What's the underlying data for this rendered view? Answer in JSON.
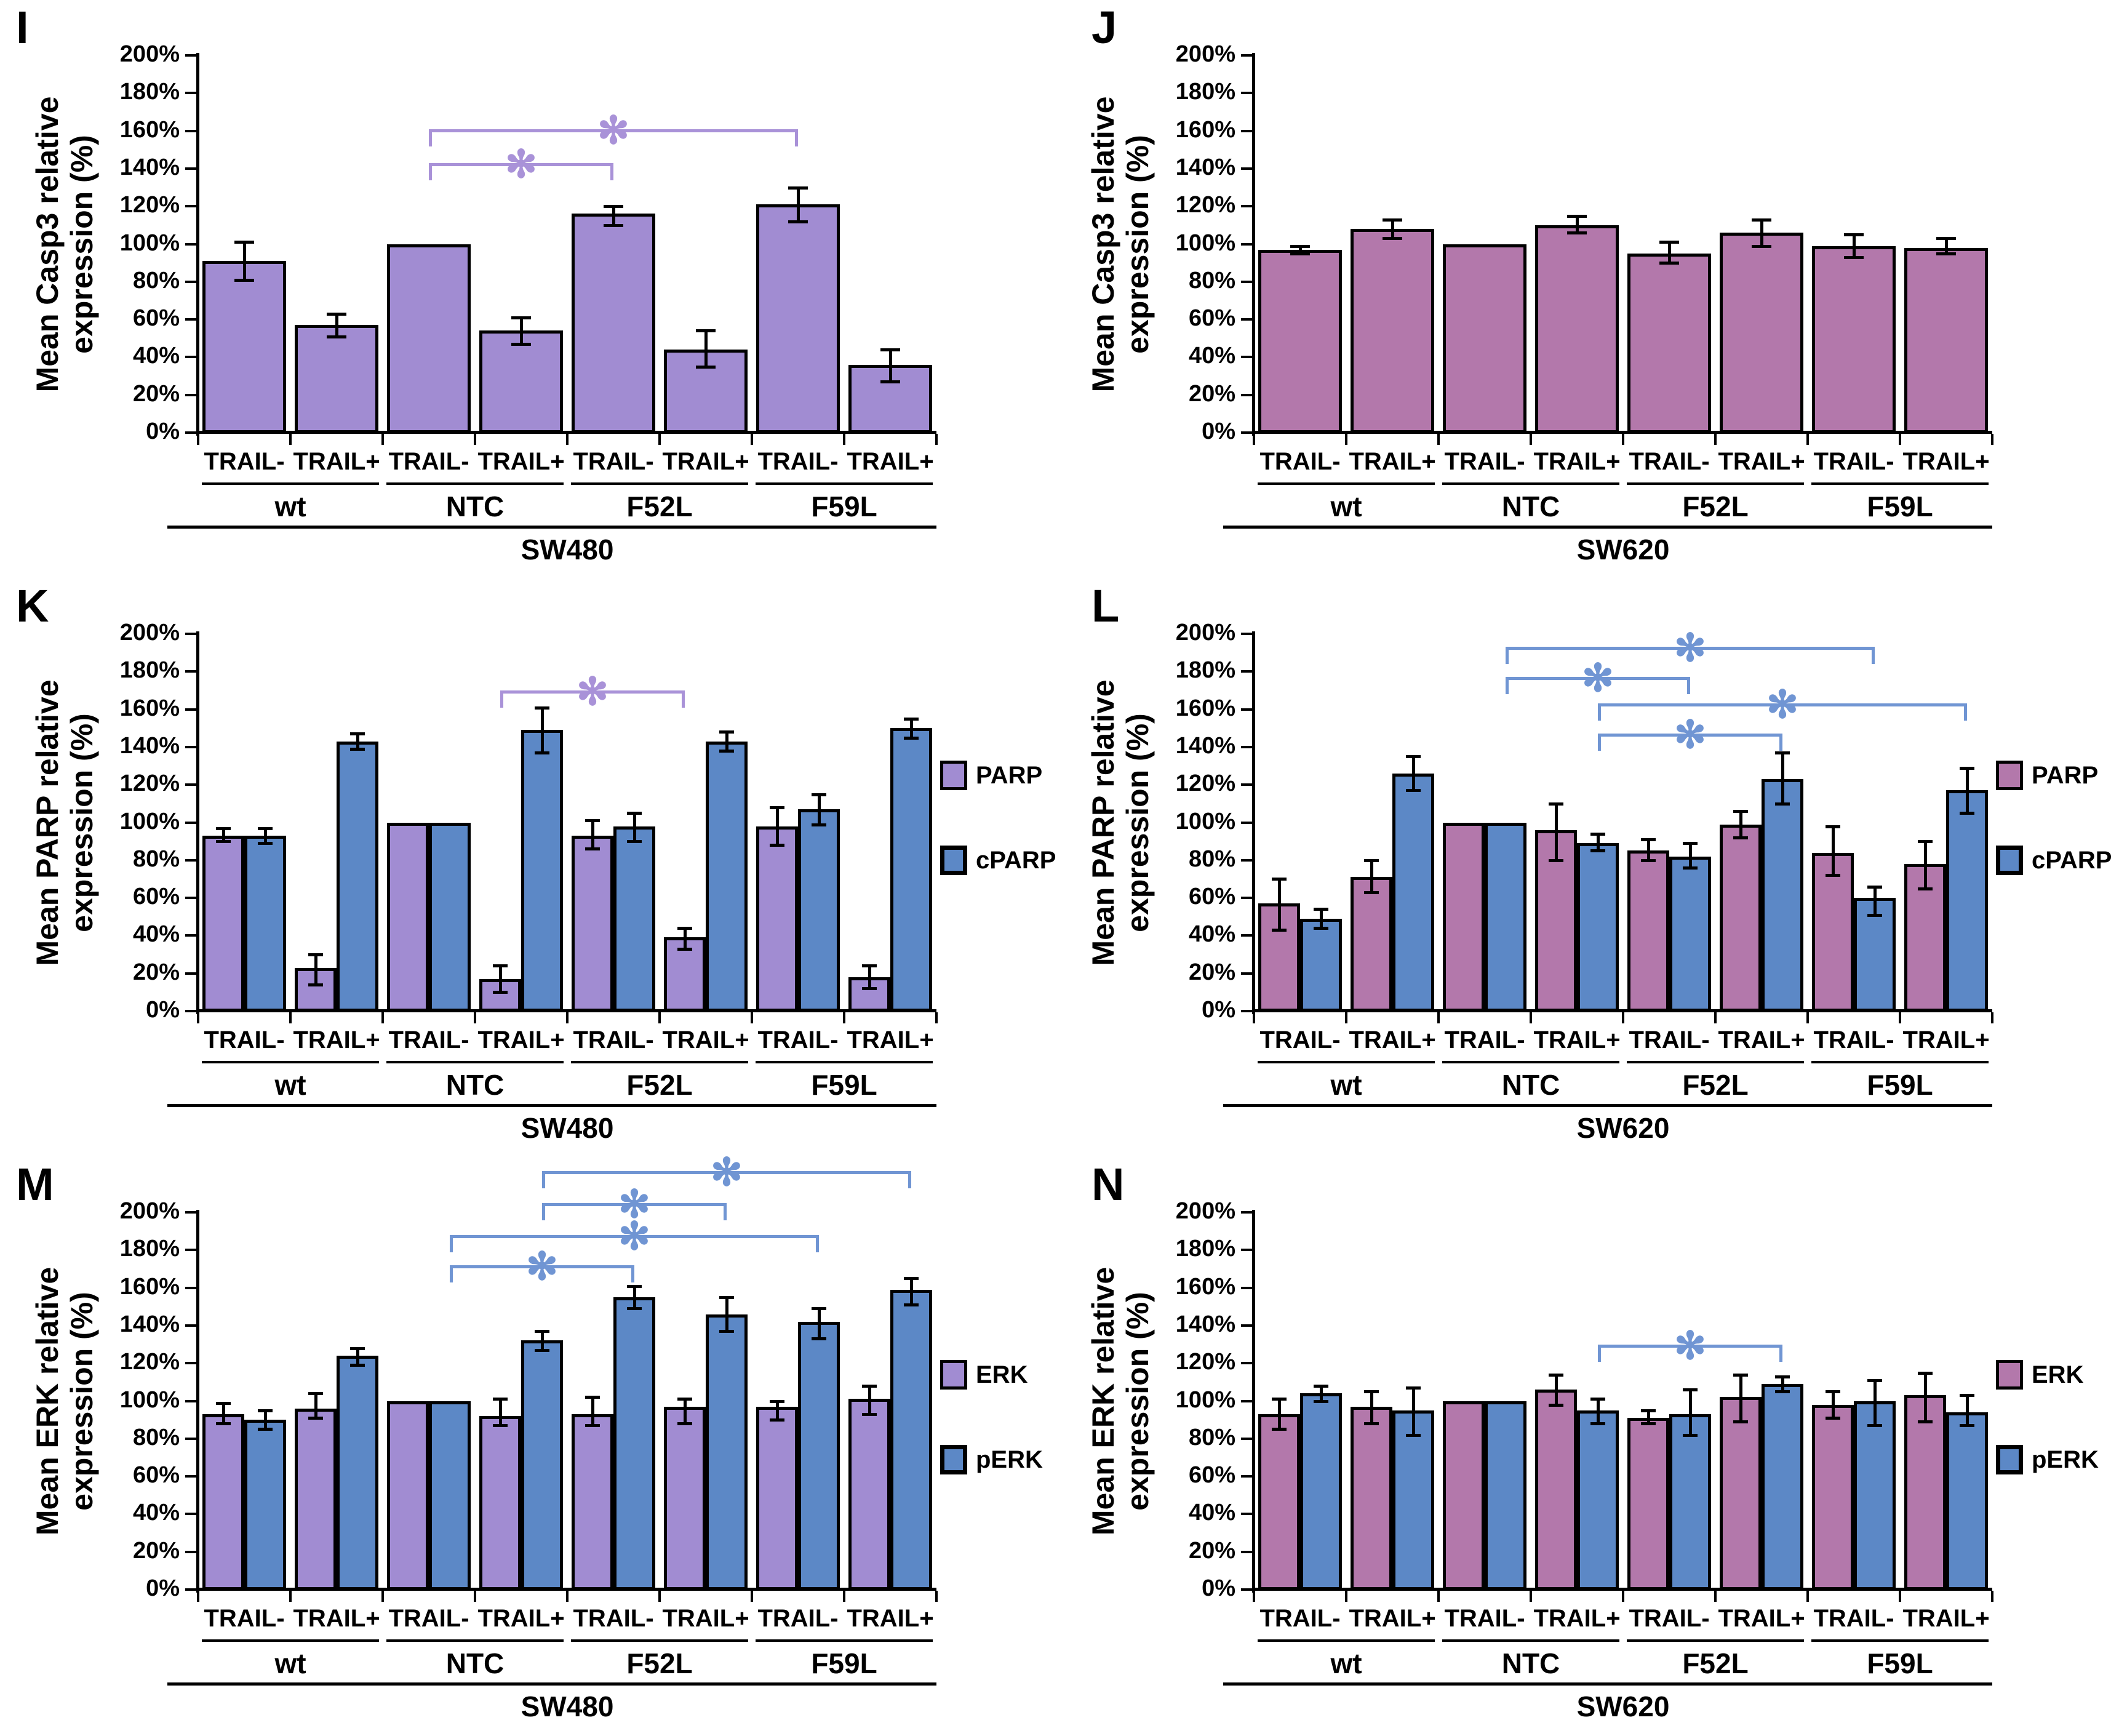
{
  "figure_title": "",
  "colors": {
    "purple": "#a18cd2",
    "pink": "#b378ab",
    "blue": "#5c88c6",
    "bracket_purple": "#a992d8",
    "bracket_blue": "#7095d3",
    "bar_border": "#000000",
    "background": "#ffffff"
  },
  "yticks": [
    "0%",
    "20%",
    "40%",
    "60%",
    "80%",
    "100%",
    "120%",
    "140%",
    "160%",
    "180%",
    "200%"
  ],
  "chart_data": [
    {
      "id": "I",
      "type": "bar",
      "letter": "I",
      "ylabel": "Mean Casp3 relative expression (%)",
      "cell_line": "SW480",
      "groups": [
        "wt",
        "NTC",
        "F52L",
        "F59L"
      ],
      "conditions": [
        "TRAIL-",
        "TRAIL+"
      ],
      "ylim": [
        0,
        200
      ],
      "ytick_step": 20,
      "grid": false,
      "series": [
        {
          "name": "Casp3",
          "color": "purple",
          "values": [
            91,
            57,
            100,
            54,
            116,
            44,
            121,
            36
          ],
          "err_lo": [
            81,
            51,
            null,
            47,
            110,
            35,
            112,
            27
          ],
          "err_hi": [
            101,
            63,
            null,
            61,
            120,
            54,
            130,
            44
          ]
        }
      ],
      "legend": [],
      "bracket_color": "bracket_purple",
      "brackets": [
        {
          "from": 2,
          "to": 4,
          "level": 143,
          "label": "*"
        },
        {
          "from": 2,
          "to": 6,
          "level": 161,
          "label": "*"
        }
      ]
    },
    {
      "id": "J",
      "type": "bar",
      "letter": "J",
      "ylabel": "Mean Casp3 relative expression (%)",
      "cell_line": "SW620",
      "groups": [
        "wt",
        "NTC",
        "F52L",
        "F59L"
      ],
      "conditions": [
        "TRAIL-",
        "TRAIL+"
      ],
      "ylim": [
        0,
        200
      ],
      "ytick_step": 20,
      "grid": false,
      "series": [
        {
          "name": "Casp3",
          "color": "pink",
          "values": [
            97,
            108,
            100,
            110,
            95,
            106,
            99,
            98
          ],
          "err_lo": [
            95,
            103,
            null,
            106,
            90,
            99,
            93,
            95
          ],
          "err_hi": [
            99,
            113,
            null,
            115,
            101,
            113,
            105,
            103
          ]
        }
      ],
      "legend": [],
      "bracket_color": "bracket_pink",
      "brackets": []
    },
    {
      "id": "K",
      "type": "bar",
      "letter": "K",
      "ylabel": "Mean PARP relative expression (%)",
      "cell_line": "SW480",
      "groups": [
        "wt",
        "NTC",
        "F52L",
        "F59L"
      ],
      "conditions": [
        "TRAIL-",
        "TRAIL+"
      ],
      "ylim": [
        0,
        200
      ],
      "ytick_step": 20,
      "grid": false,
      "series": [
        {
          "name": "PARP",
          "color": "purple",
          "values": [
            93,
            23,
            100,
            17,
            93,
            39,
            98,
            18
          ],
          "err_lo": [
            90,
            14,
            null,
            10,
            86,
            33,
            88,
            12
          ],
          "err_hi": [
            97,
            30,
            null,
            24,
            101,
            44,
            108,
            24
          ]
        },
        {
          "name": "cPARP",
          "color": "blue",
          "values": [
            93,
            143,
            100,
            149,
            98,
            143,
            107,
            150
          ],
          "err_lo": [
            89,
            139,
            null,
            137,
            90,
            138,
            99,
            145
          ],
          "err_hi": [
            97,
            147,
            null,
            161,
            105,
            148,
            115,
            155
          ]
        }
      ],
      "legend": [
        {
          "label": "PARP",
          "color": "purple",
          "level": 125
        },
        {
          "label": "cPARP",
          "color": "blue",
          "level": 80
        }
      ],
      "bracket_color": "bracket_purple",
      "brackets": [
        {
          "from": 6,
          "to": 10,
          "level": 170,
          "label": "*"
        }
      ]
    },
    {
      "id": "L",
      "type": "bar",
      "letter": "L",
      "ylabel": "Mean PARP relative expression (%)",
      "cell_line": "SW620",
      "groups": [
        "wt",
        "NTC",
        "F52L",
        "F59L"
      ],
      "conditions": [
        "TRAIL-",
        "TRAIL+"
      ],
      "ylim": [
        0,
        200
      ],
      "ytick_step": 20,
      "grid": false,
      "series": [
        {
          "name": "PARP",
          "color": "pink",
          "values": [
            57,
            71,
            100,
            96,
            85,
            99,
            84,
            78
          ],
          "err_lo": [
            43,
            63,
            null,
            80,
            80,
            92,
            72,
            65
          ],
          "err_hi": [
            70,
            80,
            null,
            110,
            91,
            106,
            98,
            90
          ]
        },
        {
          "name": "cPARP",
          "color": "blue",
          "values": [
            49,
            126,
            100,
            89,
            82,
            123,
            60,
            117
          ],
          "err_lo": [
            44,
            117,
            null,
            85,
            76,
            110,
            51,
            105
          ],
          "err_hi": [
            54,
            135,
            null,
            94,
            89,
            137,
            66,
            129
          ]
        }
      ],
      "legend": [
        {
          "label": "PARP",
          "color": "pink",
          "level": 125
        },
        {
          "label": "cPARP",
          "color": "blue",
          "level": 80
        }
      ],
      "bracket_color": "bracket_blue",
      "brackets": [
        {
          "from": 5,
          "to": 13,
          "level": 193,
          "label": "*"
        },
        {
          "from": 5,
          "to": 9,
          "level": 177,
          "label": "*"
        },
        {
          "from": 7,
          "to": 15,
          "level": 163,
          "label": "*"
        },
        {
          "from": 7,
          "to": 11,
          "level": 147,
          "label": "*"
        }
      ]
    },
    {
      "id": "M",
      "type": "bar",
      "letter": "M",
      "ylabel": "Mean ERK relative expression (%)",
      "cell_line": "SW480",
      "groups": [
        "wt",
        "NTC",
        "F52L",
        "F59L"
      ],
      "conditions": [
        "TRAIL-",
        "TRAIL+"
      ],
      "ylim": [
        0,
        200
      ],
      "ytick_step": 20,
      "grid": false,
      "series": [
        {
          "name": "ERK",
          "color": "purple",
          "values": [
            93,
            96,
            100,
            92,
            93,
            97,
            97,
            101
          ],
          "err_lo": [
            88,
            91,
            null,
            87,
            87,
            88,
            90,
            93
          ],
          "err_hi": [
            99,
            104,
            null,
            101,
            102,
            101,
            100,
            108
          ]
        },
        {
          "name": "pERK",
          "color": "blue",
          "values": [
            90,
            124,
            100,
            132,
            155,
            146,
            142,
            159
          ],
          "err_lo": [
            85,
            119,
            null,
            127,
            149,
            137,
            133,
            151
          ],
          "err_hi": [
            95,
            128,
            null,
            137,
            161,
            155,
            149,
            165
          ]
        }
      ],
      "legend": [
        {
          "label": "ERK",
          "color": "purple",
          "level": 114
        },
        {
          "label": "pERK",
          "color": "blue",
          "level": 69
        }
      ],
      "bracket_color": "bracket_blue",
      "brackets": [
        {
          "from": 7,
          "to": 15,
          "level": 222,
          "label": "*"
        },
        {
          "from": 7,
          "to": 11,
          "level": 205,
          "label": "*"
        },
        {
          "from": 5,
          "to": 13,
          "level": 188,
          "label": "*"
        },
        {
          "from": 5,
          "to": 9,
          "level": 172,
          "label": "*"
        }
      ]
    },
    {
      "id": "N",
      "type": "bar",
      "letter": "N",
      "ylabel": "Mean ERK relative expression (%)",
      "cell_line": "SW620",
      "groups": [
        "wt",
        "NTC",
        "F52L",
        "F59L"
      ],
      "conditions": [
        "TRAIL-",
        "TRAIL+"
      ],
      "ylim": [
        0,
        200
      ],
      "ytick_step": 20,
      "grid": false,
      "series": [
        {
          "name": "ERK",
          "color": "pink",
          "values": [
            93,
            97,
            100,
            106,
            91,
            102,
            98,
            103
          ],
          "err_lo": [
            85,
            88,
            null,
            98,
            88,
            89,
            91,
            89
          ],
          "err_hi": [
            101,
            105,
            null,
            114,
            95,
            114,
            105,
            115
          ]
        },
        {
          "name": "pERK",
          "color": "blue",
          "values": [
            104,
            95,
            100,
            95,
            93,
            109,
            100,
            94
          ],
          "err_lo": [
            100,
            82,
            null,
            88,
            82,
            105,
            87,
            87
          ],
          "err_hi": [
            108,
            107,
            null,
            101,
            106,
            113,
            111,
            103
          ]
        }
      ],
      "legend": [
        {
          "label": "ERK",
          "color": "pink",
          "level": 114
        },
        {
          "label": "pERK",
          "color": "blue",
          "level": 69
        }
      ],
      "bracket_color": "bracket_blue",
      "brackets": [
        {
          "from": 7,
          "to": 11,
          "level": 130,
          "label": "*"
        }
      ]
    }
  ]
}
